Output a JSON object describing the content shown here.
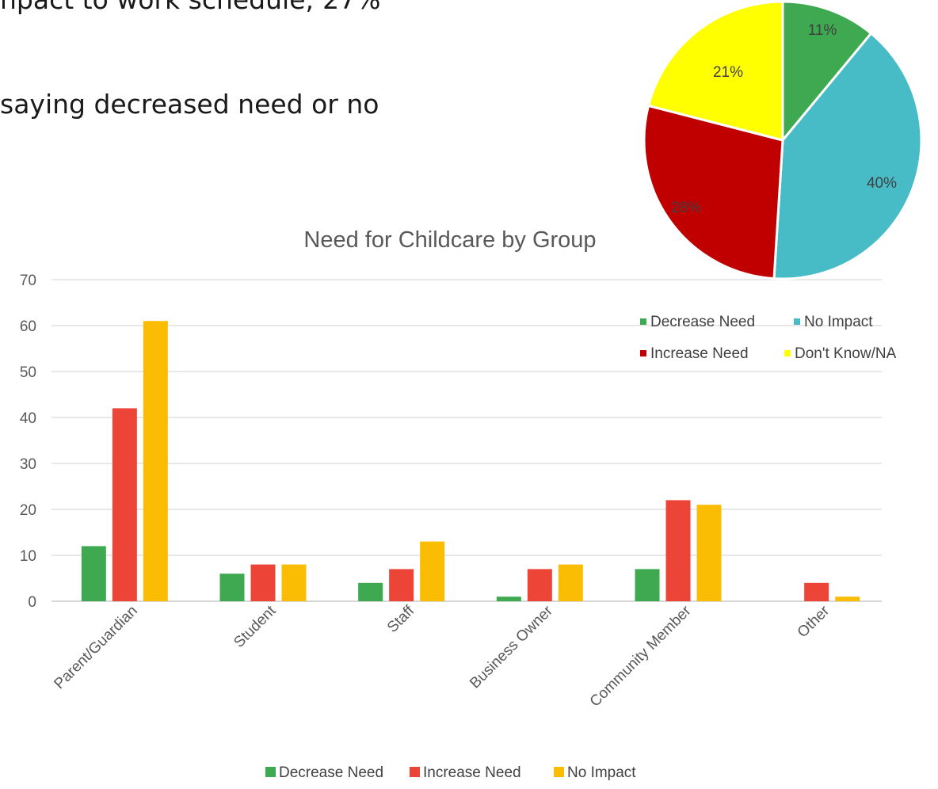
{
  "slide": {
    "line1": "npact to work schedule; 27%",
    "line2": "saying decreased need or no"
  },
  "chart_data": [
    {
      "type": "pie",
      "slices": [
        {
          "label": "Decrease Need",
          "value": 11,
          "display": "11%",
          "color": "#3ea951"
        },
        {
          "label": "No Impact",
          "value": 40,
          "display": "40%",
          "color": "#47bcc6"
        },
        {
          "label": "Increase Need",
          "value": 28,
          "display": "28%",
          "color": "#c00000"
        },
        {
          "label": "Don't Know/NA",
          "value": 21,
          "display": "21%",
          "color": "#ffff00"
        }
      ],
      "legend_placement": "bottom"
    },
    {
      "type": "bar",
      "title": "Need for Childcare by Group",
      "categories": [
        "Parent/Guardian",
        "Student",
        "Staff",
        "Business Owner",
        "Community Member",
        "Other"
      ],
      "series": [
        {
          "name": "Decrease Need",
          "color": "#3ea951",
          "values": [
            12,
            6,
            4,
            1,
            7,
            0
          ]
        },
        {
          "name": "Increase Need",
          "color": "#ec4437",
          "values": [
            42,
            8,
            7,
            7,
            22,
            4
          ]
        },
        {
          "name": "No Impact",
          "color": "#fbbc04",
          "values": [
            61,
            8,
            13,
            8,
            21,
            1
          ]
        }
      ],
      "ylim": [
        0,
        70
      ],
      "yticks": [
        0,
        10,
        20,
        30,
        40,
        50,
        60,
        70
      ],
      "grid": true,
      "legend_placement": "bottom"
    }
  ]
}
